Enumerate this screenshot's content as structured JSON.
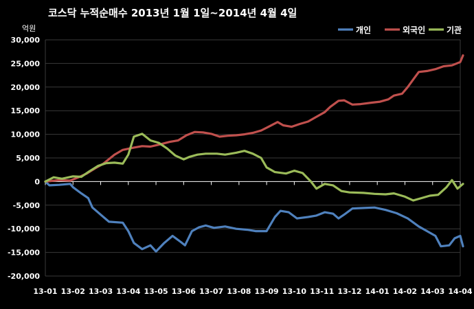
{
  "chart_data": {
    "type": "line",
    "title": "코스닥  누적순매수 2013년 1월 1일~2014년 4월 4일",
    "unit": "억원",
    "xlabel": "",
    "ylabel": "",
    "ylim": [
      -20000,
      30000
    ],
    "yticks": [
      30000,
      25000,
      20000,
      15000,
      10000,
      5000,
      0,
      -5000,
      -10000,
      -15000,
      -20000
    ],
    "ytick_labels": [
      "30,000",
      "25,000",
      "20,000",
      "15,000",
      "10,000",
      "5,000",
      "0",
      "-5,000",
      "-10,000",
      "-15,000",
      "-20,000"
    ],
    "x_tick_labels": [
      "13-01",
      "13-02",
      "13-03",
      "13-04",
      "13-05",
      "13-06",
      "13-07",
      "13-08",
      "13-09",
      "13-10",
      "13-11",
      "13-12",
      "14-01",
      "14-02",
      "14-03",
      "14-04"
    ],
    "x_range": [
      0,
      15
    ],
    "grid": "horizontal",
    "legend_position": "top-right",
    "background": "#000000",
    "series": [
      {
        "name": "개인",
        "color": "#4f81bd",
        "points": [
          [
            0,
            0
          ],
          [
            0.15,
            -800
          ],
          [
            0.5,
            -700
          ],
          [
            0.9,
            -500
          ],
          [
            1.0,
            -1200
          ],
          [
            1.3,
            -2500
          ],
          [
            1.55,
            -3500
          ],
          [
            1.7,
            -5500
          ],
          [
            2.0,
            -7000
          ],
          [
            2.3,
            -8500
          ],
          [
            2.8,
            -8700
          ],
          [
            3.0,
            -10500
          ],
          [
            3.2,
            -13000
          ],
          [
            3.5,
            -14300
          ],
          [
            3.8,
            -13500
          ],
          [
            4.0,
            -14800
          ],
          [
            4.3,
            -13000
          ],
          [
            4.6,
            -11500
          ],
          [
            4.9,
            -12800
          ],
          [
            5.05,
            -13500
          ],
          [
            5.3,
            -10500
          ],
          [
            5.55,
            -9700
          ],
          [
            5.8,
            -9300
          ],
          [
            6.1,
            -9800
          ],
          [
            6.5,
            -9500
          ],
          [
            6.9,
            -10000
          ],
          [
            7.3,
            -10200
          ],
          [
            7.6,
            -10500
          ],
          [
            8.0,
            -10500
          ],
          [
            8.3,
            -7500
          ],
          [
            8.5,
            -6200
          ],
          [
            8.8,
            -6500
          ],
          [
            9.1,
            -7800
          ],
          [
            9.5,
            -7500
          ],
          [
            9.8,
            -7200
          ],
          [
            10.1,
            -6500
          ],
          [
            10.4,
            -6800
          ],
          [
            10.6,
            -7800
          ],
          [
            10.8,
            -7000
          ],
          [
            11.1,
            -5700
          ],
          [
            11.5,
            -5600
          ],
          [
            11.9,
            -5500
          ],
          [
            12.3,
            -6000
          ],
          [
            12.7,
            -6700
          ],
          [
            13.1,
            -7800
          ],
          [
            13.5,
            -9500
          ],
          [
            13.8,
            -10500
          ],
          [
            14.1,
            -11500
          ],
          [
            14.3,
            -13700
          ],
          [
            14.6,
            -13500
          ],
          [
            14.8,
            -12000
          ],
          [
            15.0,
            -11500
          ],
          [
            15.1,
            -13700
          ]
        ]
      },
      {
        "name": "외국인",
        "color": "#c0504d",
        "points": [
          [
            0,
            0
          ],
          [
            0.5,
            300
          ],
          [
            0.9,
            200
          ],
          [
            1.2,
            900
          ],
          [
            1.5,
            1700
          ],
          [
            1.8,
            2800
          ],
          [
            2.1,
            3800
          ],
          [
            2.5,
            5700
          ],
          [
            2.8,
            6700
          ],
          [
            3.2,
            7200
          ],
          [
            3.5,
            7500
          ],
          [
            3.8,
            7400
          ],
          [
            4.1,
            7800
          ],
          [
            4.5,
            8400
          ],
          [
            4.8,
            8700
          ],
          [
            5.1,
            9800
          ],
          [
            5.4,
            10500
          ],
          [
            5.7,
            10400
          ],
          [
            6.0,
            10100
          ],
          [
            6.3,
            9500
          ],
          [
            6.6,
            9700
          ],
          [
            6.9,
            9800
          ],
          [
            7.2,
            10000
          ],
          [
            7.5,
            10300
          ],
          [
            7.8,
            10800
          ],
          [
            8.1,
            11700
          ],
          [
            8.4,
            12600
          ],
          [
            8.6,
            11900
          ],
          [
            8.9,
            11600
          ],
          [
            9.2,
            12200
          ],
          [
            9.5,
            12700
          ],
          [
            9.8,
            13700
          ],
          [
            10.1,
            14700
          ],
          [
            10.3,
            15800
          ],
          [
            10.6,
            17100
          ],
          [
            10.8,
            17200
          ],
          [
            11.1,
            16300
          ],
          [
            11.4,
            16400
          ],
          [
            11.8,
            16700
          ],
          [
            12.1,
            16900
          ],
          [
            12.4,
            17400
          ],
          [
            12.6,
            18200
          ],
          [
            12.9,
            18600
          ],
          [
            13.1,
            20000
          ],
          [
            13.3,
            21600
          ],
          [
            13.5,
            23200
          ],
          [
            13.8,
            23400
          ],
          [
            14.1,
            23800
          ],
          [
            14.4,
            24400
          ],
          [
            14.7,
            24600
          ],
          [
            15.0,
            25300
          ],
          [
            15.1,
            26700
          ]
        ]
      },
      {
        "name": "기관",
        "color": "#9bbb59",
        "points": [
          [
            0,
            0
          ],
          [
            0.3,
            900
          ],
          [
            0.6,
            600
          ],
          [
            1.0,
            1100
          ],
          [
            1.3,
            1000
          ],
          [
            1.6,
            2200
          ],
          [
            1.9,
            3300
          ],
          [
            2.2,
            3900
          ],
          [
            2.5,
            4000
          ],
          [
            2.8,
            3800
          ],
          [
            3.0,
            5700
          ],
          [
            3.2,
            9500
          ],
          [
            3.5,
            10100
          ],
          [
            3.8,
            8700
          ],
          [
            4.1,
            8200
          ],
          [
            4.4,
            7000
          ],
          [
            4.7,
            5500
          ],
          [
            5.0,
            4700
          ],
          [
            5.2,
            5200
          ],
          [
            5.5,
            5700
          ],
          [
            5.8,
            5900
          ],
          [
            6.2,
            5900
          ],
          [
            6.5,
            5700
          ],
          [
            6.9,
            6100
          ],
          [
            7.2,
            6500
          ],
          [
            7.5,
            5900
          ],
          [
            7.8,
            5000
          ],
          [
            8.0,
            3000
          ],
          [
            8.3,
            2000
          ],
          [
            8.7,
            1700
          ],
          [
            9.0,
            2300
          ],
          [
            9.3,
            1800
          ],
          [
            9.6,
            0
          ],
          [
            9.8,
            -1500
          ],
          [
            10.1,
            -500
          ],
          [
            10.4,
            -800
          ],
          [
            10.7,
            -2000
          ],
          [
            11.0,
            -2300
          ],
          [
            11.5,
            -2400
          ],
          [
            11.9,
            -2600
          ],
          [
            12.3,
            -2700
          ],
          [
            12.6,
            -2500
          ],
          [
            13.0,
            -3200
          ],
          [
            13.3,
            -4000
          ],
          [
            13.6,
            -3500
          ],
          [
            13.9,
            -3000
          ],
          [
            14.2,
            -2800
          ],
          [
            14.5,
            -1200
          ],
          [
            14.7,
            300
          ],
          [
            14.9,
            -1500
          ],
          [
            15.1,
            -500
          ]
        ]
      }
    ]
  }
}
